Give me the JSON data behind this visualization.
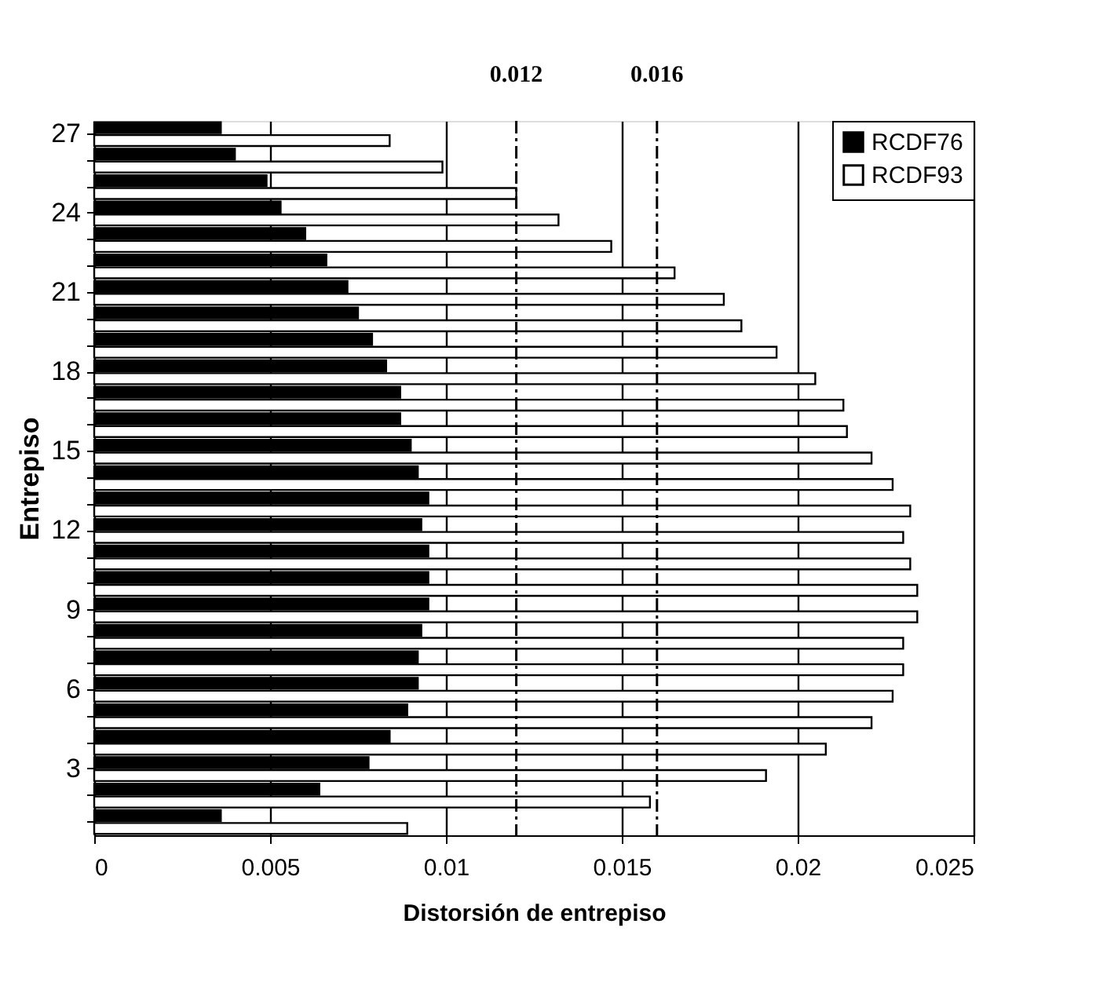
{
  "chart_data": {
    "type": "bar",
    "orientation": "horizontal",
    "xlabel": "Distorsión de entrepiso",
    "ylabel": "Entrepiso",
    "categories": [
      "27",
      null,
      null,
      "24",
      null,
      null,
      "21",
      null,
      null,
      "18",
      null,
      null,
      "15",
      null,
      null,
      "12",
      null,
      null,
      "9",
      null,
      null,
      "6",
      null,
      null,
      "3",
      null,
      null
    ],
    "series": [
      {
        "name": "RCDF76",
        "color": "#000000",
        "values": [
          0.0036,
          0.004,
          0.0049,
          0.0053,
          0.006,
          0.0066,
          0.0072,
          0.0075,
          0.0079,
          0.0083,
          0.0087,
          0.0087,
          0.009,
          0.0092,
          0.0095,
          0.0093,
          0.0095,
          0.0095,
          0.0095,
          0.0093,
          0.0092,
          0.0092,
          0.0089,
          0.0084,
          0.0078,
          0.0064,
          0.0036
        ]
      },
      {
        "name": "RCDF93",
        "color": "#ffffff",
        "values": [
          0.0084,
          0.0099,
          0.012,
          0.0132,
          0.0147,
          0.0165,
          0.0179,
          0.0184,
          0.0194,
          0.0205,
          0.0213,
          0.0214,
          0.0221,
          0.0227,
          0.0232,
          0.023,
          0.0232,
          0.0234,
          0.0234,
          0.023,
          0.023,
          0.0227,
          0.0221,
          0.0208,
          0.0191,
          0.0158,
          0.0089
        ]
      }
    ],
    "xlim": [
      0,
      0.025
    ],
    "xticks": [
      0,
      0.005,
      0.01,
      0.015,
      0.02,
      0.025
    ],
    "grid": "x",
    "legend": "top right",
    "ref_lines": [
      {
        "axis": "x",
        "value": 0.012,
        "label": "0.012",
        "line_style": "dashed"
      },
      {
        "axis": "x",
        "value": 0.016,
        "label": "0.016",
        "line_style": "dashed"
      }
    ]
  }
}
